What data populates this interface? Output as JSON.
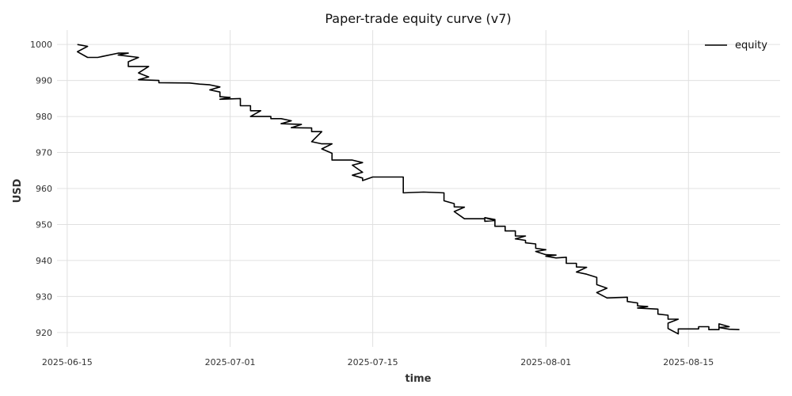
{
  "chart_data": {
    "type": "line",
    "title": "Paper-trade equity curve (v7)",
    "xlabel": "time",
    "ylabel": "USD",
    "grid": true,
    "legend_position": "top-right",
    "xlim": [
      "2025-06-14",
      "2025-08-24"
    ],
    "ylim": [
      916,
      1004
    ],
    "x_ticks": [
      "2025-06-15",
      "2025-07-01",
      "2025-07-15",
      "2025-08-01",
      "2025-08-15"
    ],
    "y_ticks": [
      920,
      930,
      940,
      950,
      960,
      970,
      980,
      990,
      1000
    ],
    "series": [
      {
        "name": "equity",
        "color": "#000000",
        "points": [
          [
            "2025-06-16",
            1000.0
          ],
          [
            "2025-06-17",
            999.5
          ],
          [
            "2025-06-16",
            998.0
          ],
          [
            "2025-06-17",
            996.4
          ],
          [
            "2025-06-18",
            996.4
          ],
          [
            "2025-06-20",
            997.6
          ],
          [
            "2025-06-21",
            997.6
          ],
          [
            "2025-06-20",
            997.1
          ],
          [
            "2025-06-22",
            996.4
          ],
          [
            "2025-06-21",
            995.2
          ],
          [
            "2025-06-21",
            993.9
          ],
          [
            "2025-06-23",
            993.9
          ],
          [
            "2025-06-22",
            992.1
          ],
          [
            "2025-06-23",
            991.0
          ],
          [
            "2025-06-22",
            990.2
          ],
          [
            "2025-06-24",
            990.0
          ],
          [
            "2025-06-24",
            989.4
          ],
          [
            "2025-06-27",
            989.3
          ],
          [
            "2025-06-28",
            989.0
          ],
          [
            "2025-06-29",
            988.8
          ],
          [
            "2025-06-30",
            988.2
          ],
          [
            "2025-06-29",
            987.4
          ],
          [
            "2025-06-30",
            986.8
          ],
          [
            "2025-06-30",
            985.5
          ],
          [
            "2025-07-01",
            985.3
          ],
          [
            "2025-06-30",
            984.8
          ],
          [
            "2025-07-02",
            985.0
          ],
          [
            "2025-07-02",
            983.0
          ],
          [
            "2025-07-03",
            983.0
          ],
          [
            "2025-07-03",
            981.6
          ],
          [
            "2025-07-04",
            981.6
          ],
          [
            "2025-07-03",
            980.0
          ],
          [
            "2025-07-05",
            980.0
          ],
          [
            "2025-07-05",
            979.4
          ],
          [
            "2025-07-06",
            979.4
          ],
          [
            "2025-07-07",
            978.8
          ],
          [
            "2025-07-06",
            978.0
          ],
          [
            "2025-07-08",
            977.8
          ],
          [
            "2025-07-07",
            976.9
          ],
          [
            "2025-07-09",
            976.8
          ],
          [
            "2025-07-09",
            975.8
          ],
          [
            "2025-07-10",
            975.8
          ],
          [
            "2025-07-09",
            973.0
          ],
          [
            "2025-07-10",
            972.4
          ],
          [
            "2025-07-11",
            972.4
          ],
          [
            "2025-07-10",
            971.0
          ],
          [
            "2025-07-11",
            969.8
          ],
          [
            "2025-07-11",
            967.9
          ],
          [
            "2025-07-13",
            967.9
          ],
          [
            "2025-07-14",
            967.2
          ],
          [
            "2025-07-13",
            966.5
          ],
          [
            "2025-07-14",
            964.5
          ],
          [
            "2025-07-13",
            963.7
          ],
          [
            "2025-07-14",
            962.9
          ],
          [
            "2025-07-14",
            962.2
          ],
          [
            "2025-07-15",
            963.2
          ],
          [
            "2025-07-18",
            963.2
          ],
          [
            "2025-07-18",
            961.2
          ],
          [
            "2025-07-18",
            958.8
          ],
          [
            "2025-07-20",
            959.0
          ],
          [
            "2025-07-22",
            958.8
          ],
          [
            "2025-07-22",
            957.7
          ],
          [
            "2025-07-22",
            956.6
          ],
          [
            "2025-07-23",
            955.8
          ],
          [
            "2025-07-23",
            954.9
          ],
          [
            "2025-07-24",
            954.8
          ],
          [
            "2025-07-23",
            953.6
          ],
          [
            "2025-07-24",
            951.6
          ],
          [
            "2025-07-26",
            951.6
          ],
          [
            "2025-07-26",
            950.9
          ],
          [
            "2025-07-27",
            951.1
          ],
          [
            "2025-07-26",
            951.9
          ],
          [
            "2025-07-27",
            951.4
          ],
          [
            "2025-07-27",
            949.5
          ],
          [
            "2025-07-28",
            949.5
          ],
          [
            "2025-07-28",
            948.2
          ],
          [
            "2025-07-29",
            948.2
          ],
          [
            "2025-07-29",
            946.8
          ],
          [
            "2025-07-30",
            946.8
          ],
          [
            "2025-07-29",
            946.0
          ],
          [
            "2025-07-30",
            945.6
          ],
          [
            "2025-07-30",
            944.9
          ],
          [
            "2025-07-31",
            944.6
          ],
          [
            "2025-07-31",
            943.4
          ],
          [
            "2025-08-01",
            943.0
          ],
          [
            "2025-07-31",
            942.5
          ],
          [
            "2025-08-01",
            941.6
          ],
          [
            "2025-08-02",
            941.5
          ],
          [
            "2025-08-01",
            941.2
          ],
          [
            "2025-08-02",
            940.7
          ],
          [
            "2025-08-03",
            940.9
          ],
          [
            "2025-08-03",
            939.2
          ],
          [
            "2025-08-04",
            939.2
          ],
          [
            "2025-08-04",
            938.2
          ],
          [
            "2025-08-05",
            938.1
          ],
          [
            "2025-08-04",
            936.8
          ],
          [
            "2025-08-05",
            936.2
          ],
          [
            "2025-08-06",
            935.3
          ],
          [
            "2025-08-06",
            934.2
          ],
          [
            "2025-08-06",
            933.3
          ],
          [
            "2025-08-07",
            932.3
          ],
          [
            "2025-08-06",
            931.1
          ],
          [
            "2025-08-07",
            929.6
          ],
          [
            "2025-08-09",
            929.8
          ],
          [
            "2025-08-09",
            928.6
          ],
          [
            "2025-08-10",
            928.2
          ],
          [
            "2025-08-10",
            927.4
          ],
          [
            "2025-08-11",
            927.2
          ],
          [
            "2025-08-10",
            926.8
          ],
          [
            "2025-08-12",
            926.5
          ],
          [
            "2025-08-12",
            925.1
          ],
          [
            "2025-08-13",
            924.8
          ],
          [
            "2025-08-13",
            923.7
          ],
          [
            "2025-08-14",
            923.7
          ],
          [
            "2025-08-13",
            922.6
          ],
          [
            "2025-08-13",
            921.1
          ],
          [
            "2025-08-14",
            919.6
          ],
          [
            "2025-08-14",
            921.0
          ],
          [
            "2025-08-16",
            921.0
          ],
          [
            "2025-08-16",
            921.6
          ],
          [
            "2025-08-17",
            921.6
          ],
          [
            "2025-08-17",
            920.8
          ],
          [
            "2025-08-18",
            920.8
          ],
          [
            "2025-08-18",
            922.4
          ],
          [
            "2025-08-19",
            921.6
          ],
          [
            "2025-08-18",
            921.4
          ],
          [
            "2025-08-19",
            920.9
          ],
          [
            "2025-08-20",
            920.8
          ]
        ]
      }
    ]
  }
}
